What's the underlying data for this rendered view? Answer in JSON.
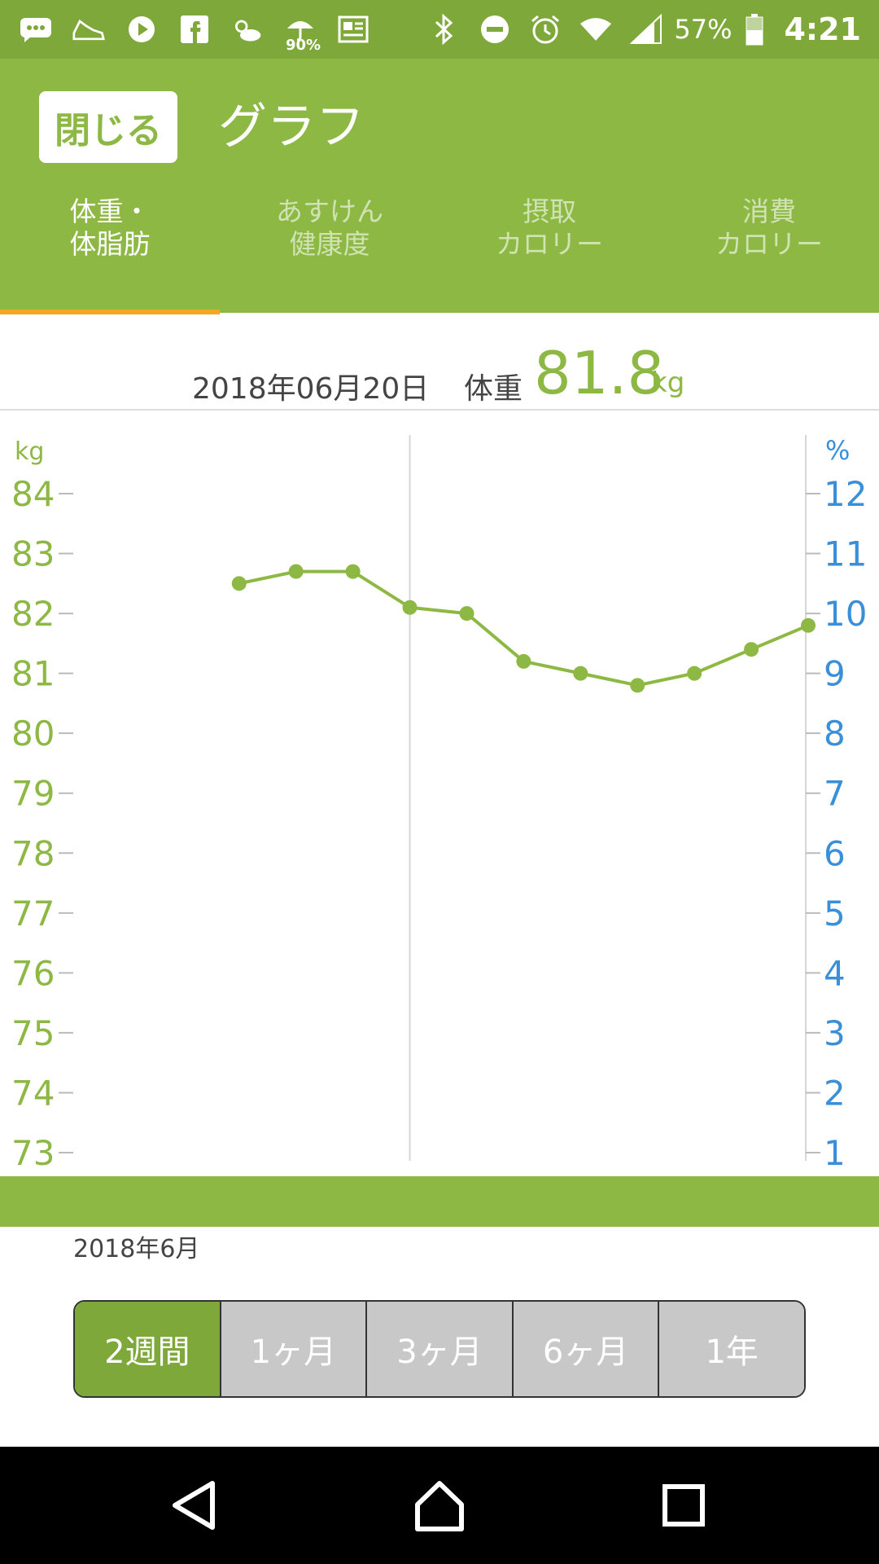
{
  "status_bar": {
    "rain_percent": "90%",
    "battery_percent": "57%",
    "time": "4:21",
    "icons_left": [
      "messages-icon",
      "shoe-icon",
      "play-icon",
      "facebook-icon",
      "weather-icon",
      "umbrella-icon",
      "news-icon"
    ],
    "icons_right": [
      "bluetooth-icon",
      "dnd-icon",
      "alarm-icon",
      "wifi-icon",
      "signal-icon",
      "battery-icon"
    ]
  },
  "header": {
    "close_label": "閉じる",
    "title": "グラフ"
  },
  "tabs": [
    {
      "line1": "体重・",
      "line2": "体脂肪",
      "active": true
    },
    {
      "line1": "あすけん",
      "line2": "健康度",
      "active": false
    },
    {
      "line1": "摂取",
      "line2": "カロリー",
      "active": false
    },
    {
      "line1": "消費",
      "line2": "カロリー",
      "active": false
    }
  ],
  "summary": {
    "date": "2018年06月20日",
    "label": "体重",
    "value": "81.8",
    "unit": "kg"
  },
  "month_label": "2018年6月",
  "periods": [
    {
      "label": "2週間",
      "active": true
    },
    {
      "label": "1ヶ月",
      "active": false
    },
    {
      "label": "3ヶ月",
      "active": false
    },
    {
      "label": "6ヶ月",
      "active": false
    },
    {
      "label": "1年",
      "active": false
    }
  ],
  "colors": {
    "brand_green": "#8cb843",
    "percent_blue": "#3a8fd9",
    "tab_indicator": "#f5a623"
  },
  "chart_data": {
    "type": "line",
    "left_axis_unit": "kg",
    "right_axis_unit": "%",
    "left_ticks": [
      84,
      83,
      82,
      81,
      80,
      79,
      78,
      77,
      76,
      75,
      74,
      73
    ],
    "right_ticks": [
      12,
      11,
      10,
      9,
      8,
      7,
      6,
      5,
      4,
      3,
      2,
      1
    ],
    "ylim": [
      73,
      84
    ],
    "y2lim": [
      1,
      12
    ],
    "x_ticks": [
      7,
      8,
      9,
      10,
      11,
      12,
      13,
      14,
      15,
      16,
      17,
      18,
      19,
      20
    ],
    "series": [
      {
        "x": [
          10,
          11,
          12,
          13,
          14,
          15,
          16,
          17,
          18,
          19,
          20
        ],
        "values": [
          82.5,
          82.7,
          82.7,
          82.1,
          82.0,
          81.2,
          81.0,
          80.8,
          81.0,
          81.4,
          81.8
        ]
      }
    ],
    "grid": false
  }
}
